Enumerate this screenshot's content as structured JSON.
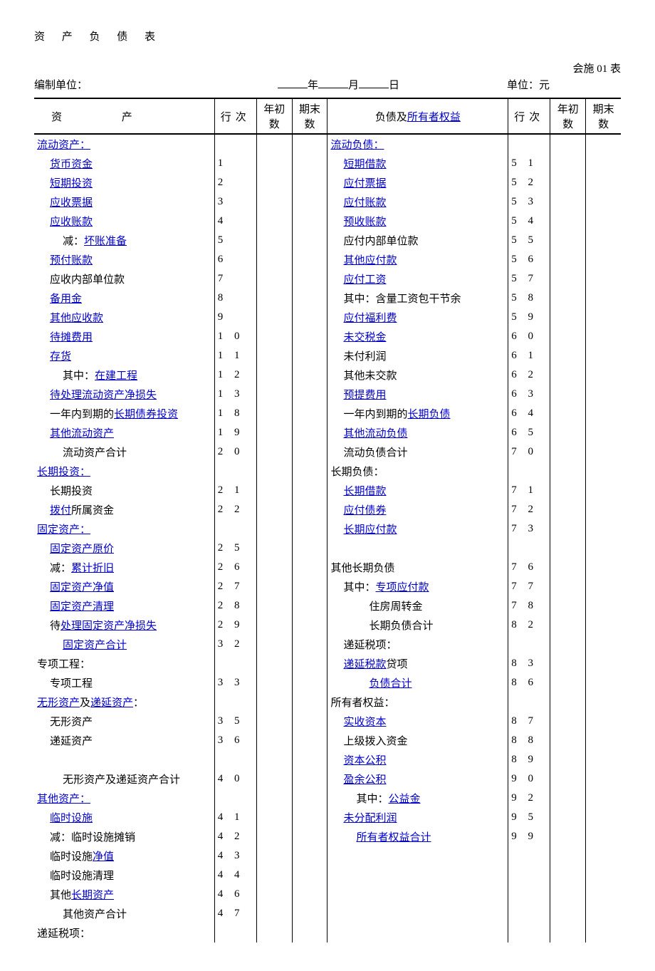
{
  "title": "资 产 负 债 表",
  "form_no": "会施 01 表",
  "org_label": "编制单位：",
  "date_year": "年",
  "date_month": "月",
  "date_day": "日",
  "unit_label": "单位：元",
  "head": {
    "asset": "资     产",
    "line": "行次",
    "yb": "年初数",
    "pe": "期末数",
    "liab": "负债及",
    "owner_equity": "所有者权益"
  },
  "left": [
    {
      "t": "流动资产：",
      "link": 1,
      "n": "",
      "ind": 0
    },
    {
      "t": "货币资金",
      "link": 1,
      "n": "1",
      "ind": 1
    },
    {
      "t": "短期投资",
      "link": 1,
      "n": "2",
      "ind": 1
    },
    {
      "t": "应收票据",
      "link": 1,
      "n": "3",
      "ind": 1
    },
    {
      "t": "应收账款",
      "link": 1,
      "n": "4",
      "ind": 1
    },
    {
      "pre": "减：",
      "t": "坏账准备",
      "link": 1,
      "n": "5",
      "ind": 2
    },
    {
      "t": "预付账款",
      "link": 1,
      "n": "6",
      "ind": 1
    },
    {
      "t": "应收内部单位款",
      "link": 0,
      "n": "7",
      "ind": 1
    },
    {
      "t": "备用金",
      "link": 1,
      "n": "8",
      "ind": 1
    },
    {
      "t": "其他应收款",
      "link": 1,
      "n": "9",
      "ind": 1
    },
    {
      "t": "待摊费用",
      "link": 1,
      "n": "10",
      "ind": 1
    },
    {
      "t": "存货",
      "link": 1,
      "n": "11",
      "ind": 1
    },
    {
      "pre": "其中：",
      "t": "在建工程",
      "link": 1,
      "n": "12",
      "ind": 2
    },
    {
      "t": "待处理流动资产净损失",
      "link": 1,
      "n": "13",
      "ind": 1
    },
    {
      "pre": "一年内到期的",
      "t": "长期债券投资",
      "link": 1,
      "n": "18",
      "ind": 1
    },
    {
      "t": "其他流动资产",
      "link": 1,
      "n": "19",
      "ind": 1
    },
    {
      "t": "流动资产合计",
      "link": 0,
      "n": "20",
      "ind": 2
    },
    {
      "t": "长期投资：",
      "link": 1,
      "n": "",
      "ind": 0
    },
    {
      "t": "长期投资",
      "link": 0,
      "n": "21",
      "ind": 1
    },
    {
      "t": "拨付",
      "post": "所属资金",
      "link": 1,
      "n": "22",
      "ind": 1
    },
    {
      "t": "固定资产：",
      "link": 1,
      "n": "",
      "ind": 0
    },
    {
      "t": "固定资产原价",
      "link": 1,
      "n": "25",
      "ind": 1
    },
    {
      "pre": "减：",
      "t": "累计折旧",
      "link": 1,
      "n": "26",
      "ind": 1
    },
    {
      "t": "固定资产净值",
      "link": 1,
      "n": "27",
      "ind": 1
    },
    {
      "t": "固定资产清理",
      "link": 1,
      "n": "28",
      "ind": 1
    },
    {
      "pre": "待",
      "t": "处理固定资产净损失",
      "link": 1,
      "n": "29",
      "ind": 1
    },
    {
      "t": "固定资产合计",
      "link": 1,
      "n": "32",
      "ind": 2
    },
    {
      "t": "专项工程：",
      "link": 0,
      "n": "",
      "ind": 0
    },
    {
      "t": "专项工程",
      "link": 0,
      "n": "33",
      "ind": 1
    },
    {
      "t1": "无形资产",
      "mid": "及",
      "t2": "递延资产",
      "post": "：",
      "n": "",
      "ind": 0
    },
    {
      "t": "无形资产",
      "link": 0,
      "n": "35",
      "ind": 1
    },
    {
      "t": "递延资产",
      "link": 0,
      "n": "36",
      "ind": 1
    },
    {
      "t": "",
      "n": "",
      "ind": 0
    },
    {
      "t": "无形资产及递延资产合计",
      "link": 0,
      "n": "40",
      "ind": 2
    },
    {
      "t": "其他资产：",
      "link": 1,
      "n": "",
      "ind": 0
    },
    {
      "t": "临时设施",
      "link": 1,
      "n": "41",
      "ind": 1
    },
    {
      "t": "减：临时设施摊销",
      "link": 0,
      "n": "42",
      "ind": 1
    },
    {
      "pre": "临时设施",
      "t": "净值",
      "link": 1,
      "n": "43",
      "ind": 1
    },
    {
      "t": "临时设施清理",
      "link": 0,
      "n": "44",
      "ind": 1
    },
    {
      "pre": "其他",
      "t": "长期资产",
      "link": 1,
      "n": "46",
      "ind": 1
    },
    {
      "t": "其他资产合计",
      "link": 0,
      "n": "47",
      "ind": 2
    },
    {
      "t": "递延税项：",
      "link": 0,
      "n": "",
      "ind": 0
    }
  ],
  "right": [
    {
      "t": "流动负债：",
      "link": 1,
      "n": "",
      "ind": 0
    },
    {
      "t": "短期借款",
      "link": 1,
      "n": "51",
      "ind": 1
    },
    {
      "t": "应付票据",
      "link": 1,
      "n": "52",
      "ind": 1
    },
    {
      "t": "应付账款",
      "link": 1,
      "n": "53",
      "ind": 1
    },
    {
      "t": "预收账款",
      "link": 1,
      "n": "54",
      "ind": 1
    },
    {
      "t": "应付内部单位款",
      "link": 0,
      "n": "55",
      "ind": 1
    },
    {
      "t": "其他应付款",
      "link": 1,
      "n": "56",
      "ind": 1
    },
    {
      "t": "应付工资",
      "link": 1,
      "n": "57",
      "ind": 1
    },
    {
      "t": "其中：含量工资包干节余",
      "link": 0,
      "n": "58",
      "ind": 1
    },
    {
      "t": "应付福利费",
      "link": 1,
      "n": "59",
      "ind": 1
    },
    {
      "t": "未交税金",
      "link": 1,
      "n": "60",
      "ind": 1
    },
    {
      "t": "未付利润",
      "link": 0,
      "n": "61",
      "ind": 1
    },
    {
      "t": "其他未交款",
      "link": 0,
      "n": "62",
      "ind": 1
    },
    {
      "t": "预提费用",
      "link": 1,
      "n": "63",
      "ind": 1
    },
    {
      "pre": "一年内到期的",
      "t": "长期负债",
      "link": 1,
      "n": "64",
      "ind": 1
    },
    {
      "t": "其他流动负债",
      "link": 1,
      "n": "65",
      "ind": 1
    },
    {
      "t": "流动负债合计",
      "link": 0,
      "n": "70",
      "ind": 1
    },
    {
      "t": "长期负债：",
      "link": 0,
      "n": "",
      "ind": 0
    },
    {
      "t": "长期借款",
      "link": 1,
      "n": "71",
      "ind": 1
    },
    {
      "t": "应付债券",
      "link": 1,
      "n": "72",
      "ind": 1
    },
    {
      "t": "长期应付款",
      "link": 1,
      "n": "73",
      "ind": 1
    },
    {
      "t": "",
      "n": "",
      "ind": 0
    },
    {
      "t": "其他长期负债",
      "link": 0,
      "n": "76",
      "ind": 0
    },
    {
      "pre": "其中：",
      "t": "专项应付款",
      "link": 1,
      "n": "77",
      "ind": 1
    },
    {
      "t": "住房周转金",
      "link": 0,
      "n": "78",
      "ind": 3
    },
    {
      "t": "长期负债合计",
      "link": 0,
      "n": "82",
      "ind": 3
    },
    {
      "t": "递延税项：",
      "link": 0,
      "n": "",
      "ind": 1
    },
    {
      "t": "递延税款",
      "post": "贷项",
      "link": 1,
      "n": "83",
      "ind": 1
    },
    {
      "t": "负债合计",
      "link": 1,
      "n": "86",
      "ind": 3
    },
    {
      "t": "所有者权益：",
      "link": 0,
      "n": "",
      "ind": 0
    },
    {
      "t": "实收资本",
      "link": 1,
      "n": "87",
      "ind": 1
    },
    {
      "t": "上级拨入资金",
      "link": 0,
      "n": "88",
      "ind": 1
    },
    {
      "t": "资本公积",
      "link": 1,
      "n": "89",
      "ind": 1
    },
    {
      "t": "盈余公积",
      "link": 1,
      "n": "90",
      "ind": 1
    },
    {
      "pre": "其中：",
      "t": "公益金",
      "link": 1,
      "n": "92",
      "ind": 2
    },
    {
      "t": "未分配利润",
      "link": 1,
      "n": "95",
      "ind": 1
    },
    {
      "t": "所有者权益合计",
      "link": 1,
      "n": "99",
      "ind": 2
    },
    {
      "t": "",
      "n": "",
      "ind": 0
    },
    {
      "t": "",
      "n": "",
      "ind": 0
    },
    {
      "t": "",
      "n": "",
      "ind": 0
    },
    {
      "t": "",
      "n": "",
      "ind": 0
    },
    {
      "t": "",
      "n": "",
      "ind": 0
    }
  ]
}
